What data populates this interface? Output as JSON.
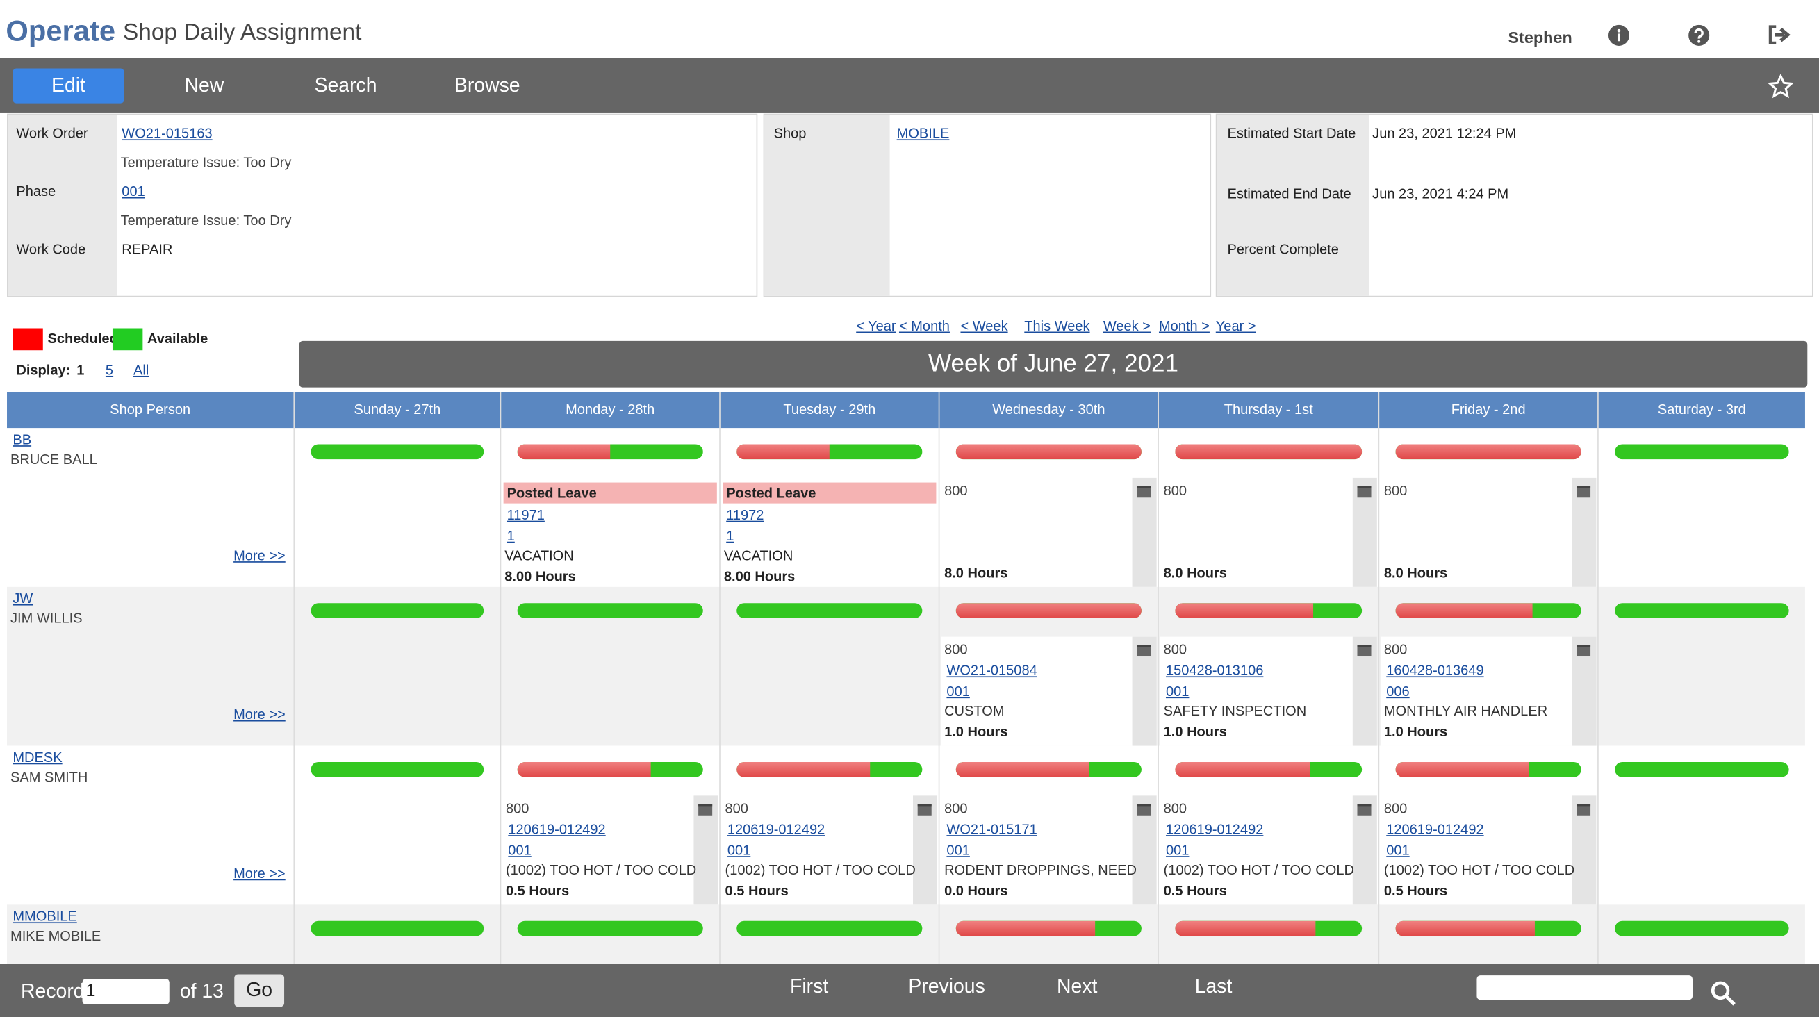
{
  "header": {
    "app": "Operate",
    "title": "Shop Daily Assignment",
    "user": "Stephen"
  },
  "toolbar": [
    "Edit",
    "New",
    "Search",
    "Browse"
  ],
  "details": {
    "left": [
      {
        "label": "Work Order",
        "value": "WO21-015163",
        "desc": "Temperature Issue: Too Dry"
      },
      {
        "label": "Phase",
        "value": "001",
        "desc": "Temperature Issue: Too Dry"
      },
      {
        "label": "Work Code",
        "value": "REPAIR"
      }
    ],
    "middle": [
      {
        "label": "Shop",
        "value": "MOBILE"
      }
    ],
    "right": [
      {
        "label": "Estimated Start Date",
        "value": "Jun 23, 2021 12:24 PM"
      },
      {
        "label": "Estimated End Date",
        "value": "Jun 23, 2021 4:24 PM"
      },
      {
        "label": "Percent Complete"
      }
    ]
  },
  "legend": [
    "Scheduled",
    "Available"
  ],
  "display": {
    "label": "Display:",
    "options": [
      "1",
      "5",
      "All"
    ]
  },
  "nav": [
    "< Year",
    "< Month",
    "< Week",
    "This Week",
    "Week >",
    "Month >",
    "Year >"
  ],
  "week_title": "Week of June 27, 2021",
  "columns": [
    "Shop Person",
    "Sunday - 27th",
    "Monday - 28th",
    "Tuesday - 29th",
    "Wednesday - 30th",
    "Thursday - 1st",
    "Friday - 2nd",
    "Saturday - 3rd"
  ],
  "people": [
    {
      "code": "BB",
      "name": "BRUCE BALL",
      "more": "More >>",
      "scheduled": [
        0,
        0.5,
        0.5,
        1,
        1,
        1,
        0
      ],
      "cells": [
        null,
        {
          "header": "Posted Leave",
          "links": [
            "11971",
            "1"
          ],
          "desc": "VACATION",
          "hours": "8.00 Hours"
        },
        {
          "header": "Posted Leave",
          "links": [
            "11972",
            "1"
          ],
          "desc": "VACATION",
          "hours": "8.00 Hours"
        },
        {
          "code": "800",
          "hours": "8.0 Hours"
        },
        {
          "code": "800",
          "hours": "8.0 Hours"
        },
        {
          "code": "800",
          "hours": "8.0 Hours"
        },
        null
      ]
    },
    {
      "code": "JW",
      "name": "JIM WILLIS",
      "more": "More >>",
      "scheduled": [
        0,
        0,
        0,
        1,
        0.74,
        0.74,
        0
      ],
      "cells": [
        null,
        null,
        null,
        {
          "code": "800",
          "links": [
            "WO21-015084",
            "001"
          ],
          "desc": "CUSTOM",
          "hours": "1.0 Hours"
        },
        {
          "code": "800",
          "links": [
            "150428-013106",
            "001"
          ],
          "desc": "SAFETY INSPECTION",
          "hours": "1.0 Hours"
        },
        {
          "code": "800",
          "links": [
            "160428-013649",
            "006"
          ],
          "desc": "MONTHLY AIR HANDLER",
          "hours": "1.0 Hours"
        },
        null
      ]
    },
    {
      "code": "MDESK",
      "name": "SAM SMITH",
      "more": "More >>",
      "scheduled": [
        0,
        0.72,
        0.72,
        0.72,
        0.72,
        0.72,
        0
      ],
      "cells": [
        null,
        {
          "code": "800",
          "links": [
            "120619-012492",
            "001"
          ],
          "desc": "(1002) TOO HOT / TOO COLD",
          "hours": "0.5 Hours"
        },
        {
          "code": "800",
          "links": [
            "120619-012492",
            "001"
          ],
          "desc": "(1002) TOO HOT / TOO COLD",
          "hours": "0.5 Hours"
        },
        {
          "code": "800",
          "links": [
            "WO21-015171",
            "001"
          ],
          "desc": "RODENT DROPPINGS, NEED",
          "hours": "0.0 Hours"
        },
        {
          "code": "800",
          "links": [
            "120619-012492",
            "001"
          ],
          "desc": "(1002) TOO HOT / TOO COLD",
          "hours": "0.5 Hours"
        },
        {
          "code": "800",
          "links": [
            "120619-012492",
            "001"
          ],
          "desc": "(1002) TOO HOT / TOO COLD",
          "hours": "0.5 Hours"
        },
        null
      ]
    },
    {
      "code": "MMOBILE",
      "name": "MIKE MOBILE",
      "scheduled": [
        0,
        0,
        0,
        0.75,
        0.75,
        0.75,
        0
      ]
    }
  ],
  "footer": {
    "record_label": "Record",
    "record_value": "1",
    "of": "of 13",
    "go": "Go",
    "nav": [
      "First",
      "Previous",
      "Next",
      "Last"
    ]
  }
}
